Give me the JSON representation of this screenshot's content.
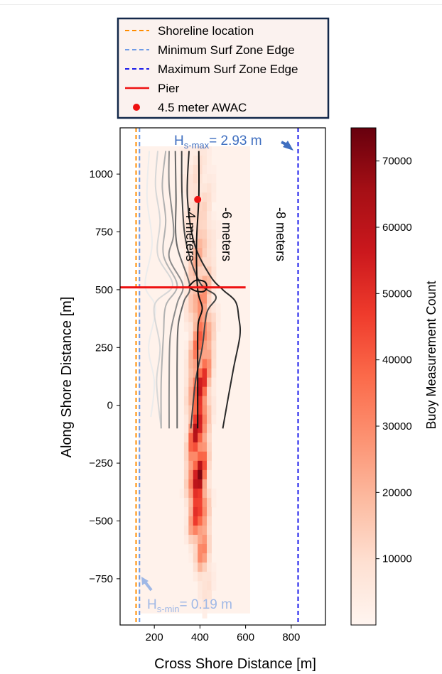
{
  "chart_data": {
    "type": "heatmap",
    "xlabel": "Cross Shore Distance [m]",
    "ylabel": "Along Shore Distance [m]",
    "xlim": [
      50,
      950
    ],
    "ylim": [
      -950,
      1200
    ],
    "xticks": [
      "200",
      "400",
      "600",
      "800"
    ],
    "yticks": [
      "1000",
      "750",
      "500",
      "250",
      "0",
      "−250",
      "−500",
      "−750"
    ],
    "colorbar": {
      "label": "Buoy Measurement Count",
      "range": [
        0,
        75000
      ],
      "ticks": [
        "70000",
        "60000",
        "50000",
        "40000",
        "30000",
        "20000",
        "10000"
      ],
      "colormap": "Reds"
    },
    "legend": {
      "position": "top",
      "items": [
        {
          "label": "Shoreline location",
          "style": "dashed",
          "color": "#ff8c00"
        },
        {
          "label": "Minimum Surf Zone Edge",
          "style": "dashed",
          "color": "#6f9be6"
        },
        {
          "label": "Maximum Surf Zone Edge",
          "style": "dashed",
          "color": "#1a1aeb"
        },
        {
          "label": "Pier",
          "style": "solid",
          "color": "#ee1111"
        },
        {
          "label": "4.5 meter AWAC",
          "style": "marker",
          "color": "#ee1111"
        }
      ]
    },
    "annotations": {
      "hs_max": {
        "main": "H",
        "sub": "s-max",
        "rest": "= 2.93 m",
        "color": "#3f6fc0"
      },
      "hs_min": {
        "main": "H",
        "sub": "s-min",
        "rest": "= 0.19 m",
        "color": "#9fb8e6"
      }
    },
    "contour_labels": [
      "-4 meters",
      "-6 meters",
      "-8 meters"
    ],
    "shoreline_x": 120,
    "min_surf_edge_x": 135,
    "max_surf_edge_x": 830,
    "pier": {
      "y": 510,
      "x_end": 600
    },
    "awac": {
      "x": 390,
      "y": 890
    },
    "heatmap_extent": {
      "x": [
        130,
        620
      ],
      "y": [
        -900,
        1120
      ]
    },
    "density_ridge": [
      {
        "along": 1100,
        "cross": 390,
        "spread": 85,
        "peak": 0.1
      },
      {
        "along": 700,
        "cross": 400,
        "spread": 70,
        "peak": 0.25
      },
      {
        "along": 500,
        "cross": 400,
        "spread": 60,
        "peak": 0.4
      },
      {
        "along": 300,
        "cross": 410,
        "spread": 55,
        "peak": 0.55
      },
      {
        "along": 100,
        "cross": 400,
        "spread": 50,
        "peak": 0.75
      },
      {
        "along": -150,
        "cross": 390,
        "spread": 45,
        "peak": 0.85
      },
      {
        "along": -350,
        "cross": 390,
        "spread": 45,
        "peak": 0.95
      },
      {
        "along": -550,
        "cross": 395,
        "spread": 45,
        "peak": 0.6
      },
      {
        "along": -750,
        "cross": 420,
        "spread": 40,
        "peak": 0.2
      },
      {
        "along": -900,
        "cross": 420,
        "spread": 40,
        "peak": 0.05
      }
    ],
    "contours": [
      {
        "color": "#ececec",
        "points": [
          [
            178,
            1100
          ],
          [
            168,
            900
          ],
          [
            190,
            700
          ],
          [
            160,
            520
          ],
          [
            205,
            420
          ],
          [
            175,
            250
          ],
          [
            200,
            100
          ],
          [
            185,
            -50
          ]
        ]
      },
      {
        "color": "#d7d7d7",
        "points": [
          [
            215,
            1100
          ],
          [
            205,
            950
          ],
          [
            225,
            800
          ],
          [
            215,
            650
          ],
          [
            280,
            520
          ],
          [
            200,
            430
          ],
          [
            225,
            250
          ],
          [
            210,
            100
          ],
          [
            230,
            -100
          ]
        ]
      },
      {
        "color": "#b2b2b2",
        "points": [
          [
            250,
            1100
          ],
          [
            235,
            950
          ],
          [
            250,
            800
          ],
          [
            240,
            650
          ],
          [
            300,
            520
          ],
          [
            250,
            430
          ],
          [
            240,
            300
          ],
          [
            230,
            100
          ],
          [
            230,
            -100
          ]
        ]
      },
      {
        "color": "#8c8c8c",
        "points": [
          [
            265,
            1100
          ],
          [
            265,
            950
          ],
          [
            285,
            750
          ],
          [
            265,
            640
          ],
          [
            325,
            520
          ],
          [
            300,
            440
          ],
          [
            270,
            300
          ],
          [
            265,
            100
          ],
          [
            265,
            -100
          ]
        ]
      },
      {
        "color": "#676767",
        "points": [
          [
            292,
            1100
          ],
          [
            295,
            900
          ],
          [
            298,
            700
          ],
          [
            355,
            520
          ],
          [
            330,
            450
          ],
          [
            305,
            350
          ],
          [
            300,
            200
          ],
          [
            300,
            0
          ],
          [
            300,
            -100
          ]
        ]
      },
      {
        "color": "#454545",
        "points": [
          [
            320,
            1100
          ],
          [
            322,
            900
          ],
          [
            340,
            700
          ],
          [
            400,
            530
          ],
          [
            470,
            470
          ],
          [
            430,
            400
          ],
          [
            410,
            250
          ],
          [
            380,
            100
          ],
          [
            360,
            -100
          ]
        ]
      },
      {
        "color": "#2a2a2a",
        "points": [
          [
            352,
            1100
          ],
          [
            345,
            900
          ],
          [
            375,
            700
          ],
          [
            445,
            560
          ],
          [
            500,
            500
          ],
          [
            555,
            450
          ],
          [
            570,
            380
          ],
          [
            575,
            300
          ],
          [
            545,
            150
          ],
          [
            500,
            -100
          ]
        ]
      },
      {
        "color": "#111111",
        "points": [
          [
            395,
            1100
          ],
          [
            395,
            900
          ],
          [
            385,
            700
          ],
          [
            390,
            500
          ],
          [
            410,
            420
          ],
          [
            392,
            350
          ],
          [
            390,
            200
          ],
          [
            390,
            -100
          ]
        ]
      }
    ],
    "pier_loop": [
      [
        350,
        512
      ],
      [
        380,
        540
      ],
      [
        420,
        535
      ],
      [
        430,
        510
      ],
      [
        415,
        492
      ],
      [
        380,
        495
      ],
      [
        350,
        512
      ]
    ]
  }
}
